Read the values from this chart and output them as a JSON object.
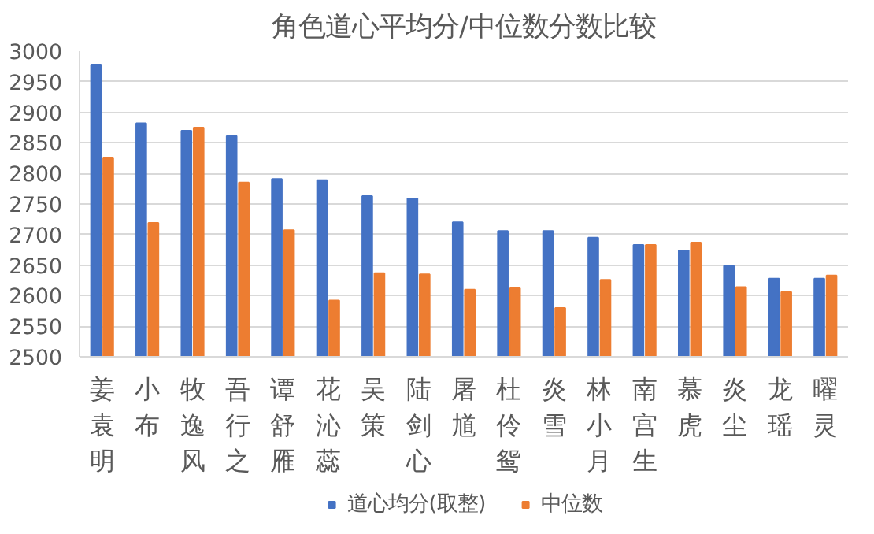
{
  "chart_data": {
    "type": "bar",
    "title": "角色道心平均分/中位数分数比较",
    "categories": [
      "姜袁明",
      "小布",
      "牧逸风",
      "吾行之",
      "谭舒雁",
      "花沁蕊",
      "吴策",
      "陆剑心",
      "屠馗",
      "杜伶鸳",
      "炎雪",
      "林小月",
      "南宫生",
      "慕虎",
      "炎尘",
      "龙瑶",
      "曜灵"
    ],
    "series": [
      {
        "name": "道心均分(取整)",
        "color": "#4472c4",
        "values": [
          2978,
          2882,
          2870,
          2861,
          2791,
          2789,
          2763,
          2759,
          2720,
          2706,
          2706,
          2695,
          2683,
          2674,
          2649,
          2628,
          2628
        ]
      },
      {
        "name": "中位数",
        "color": "#ed7d31",
        "values": [
          2826,
          2719,
          2875,
          2785,
          2707,
          2592,
          2637,
          2635,
          2610,
          2612,
          2580,
          2626,
          2683,
          2687,
          2614,
          2606,
          2633
        ]
      }
    ],
    "ylim": [
      2500,
      3000
    ],
    "yticks": [
      2500,
      2550,
      2600,
      2650,
      2700,
      2750,
      2800,
      2850,
      2900,
      2950,
      3000
    ],
    "grid": "y",
    "legend": "bottom"
  }
}
